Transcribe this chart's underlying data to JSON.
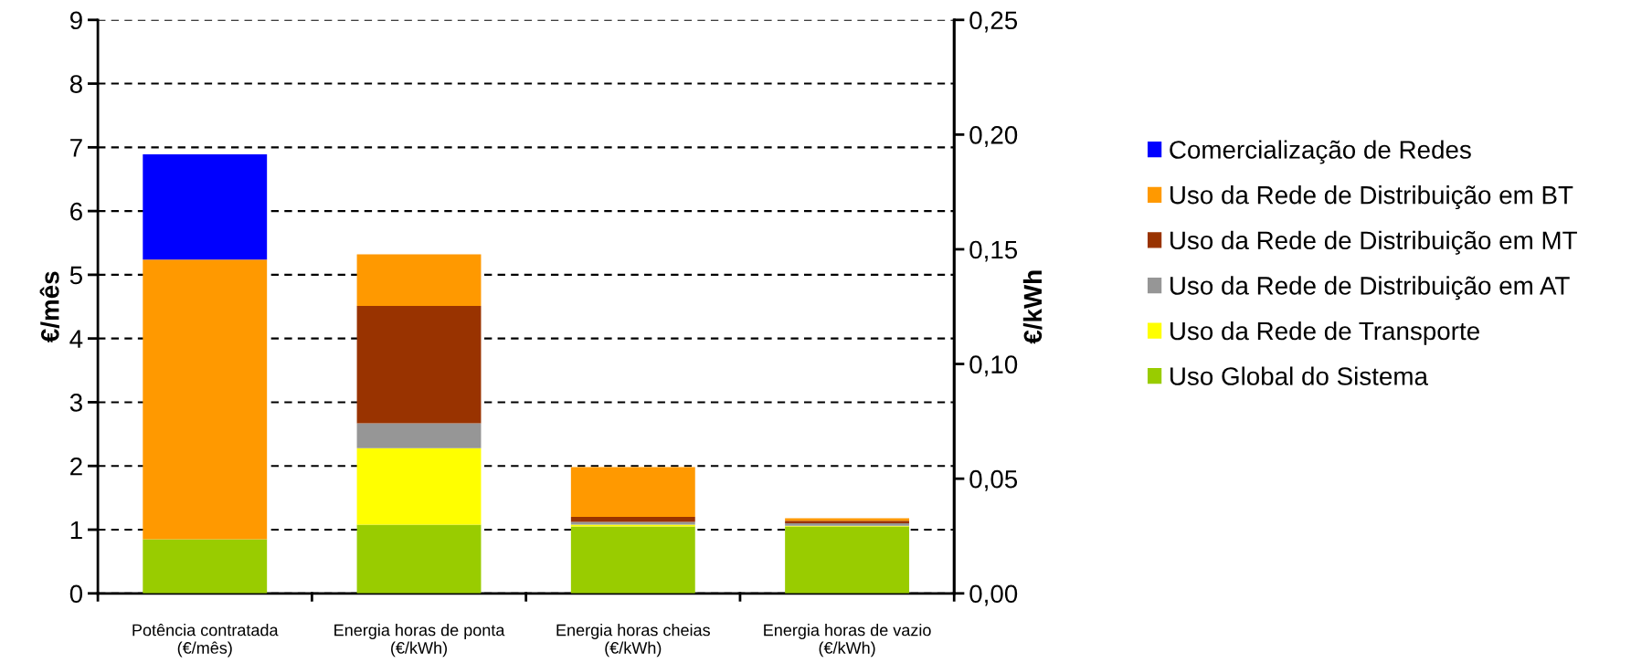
{
  "chart_data": {
    "type": "bar",
    "stacked": true,
    "categories": [
      "Potência contratada\n(€/mês)",
      "Energia horas de ponta\n(€/kWh)",
      "Energia horas cheias\n(€/kWh)",
      "Energia horas de vazio\n(€/kWh)"
    ],
    "series": [
      {
        "name": "Uso Global do Sistema",
        "color": "#99cc00",
        "values": [
          0.85,
          1.08,
          1.05,
          1.05
        ]
      },
      {
        "name": "Uso da Rede de Transporte",
        "color": "#ffff00",
        "values": [
          0,
          1.2,
          0.03,
          0.01
        ]
      },
      {
        "name": "Uso da Rede de Distribuição em AT",
        "color": "#969696",
        "values": [
          0,
          0.39,
          0.04,
          0.04
        ]
      },
      {
        "name": "Uso da Rede de Distribuição em MT",
        "color": "#993300",
        "values": [
          0,
          1.84,
          0.08,
          0.04
        ]
      },
      {
        "name": "Uso da Rede de Distribuição em BT",
        "color": "#ff9900",
        "values": [
          4.39,
          0.81,
          0.78,
          0.04
        ]
      },
      {
        "name": "Comercialização de Redes",
        "color": "#0000ff",
        "values": [
          1.65,
          0,
          0,
          0
        ]
      }
    ],
    "ylabel": "€/mês",
    "y2label": "€/kWh",
    "ylim": [
      0,
      9
    ],
    "yticks": [
      0,
      1,
      2,
      3,
      4,
      5,
      6,
      7,
      8,
      9
    ],
    "y2lim": [
      0,
      0.25
    ],
    "y2ticks": [
      {
        "value": 0,
        "label": "0,00"
      },
      {
        "value": 0.05,
        "label": "0,05"
      },
      {
        "value": 0.1,
        "label": "0,10"
      },
      {
        "value": 0.15,
        "label": "0,15"
      },
      {
        "value": 0.2,
        "label": "0,20"
      },
      {
        "value": 0.25,
        "label": "0,25"
      }
    ],
    "grid": "y",
    "legend": "right"
  }
}
